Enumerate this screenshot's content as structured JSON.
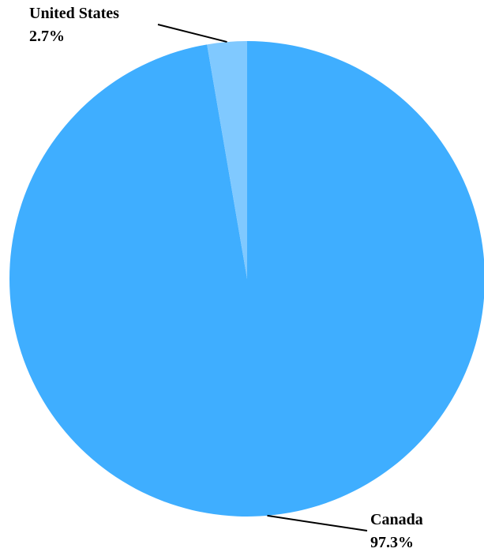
{
  "chart_data": {
    "type": "pie",
    "title": "",
    "categories": [
      "Canada",
      "United States"
    ],
    "values": [
      97.3,
      2.7
    ],
    "labels": [
      {
        "name": "Canada",
        "percent_text": "97.3%"
      },
      {
        "name": "United States",
        "percent_text": "2.7%"
      }
    ],
    "colors": [
      "#3FAEFF",
      "#80C9FF"
    ],
    "start_angle": "12 o'clock",
    "direction": "clockwise",
    "legend": "none"
  }
}
